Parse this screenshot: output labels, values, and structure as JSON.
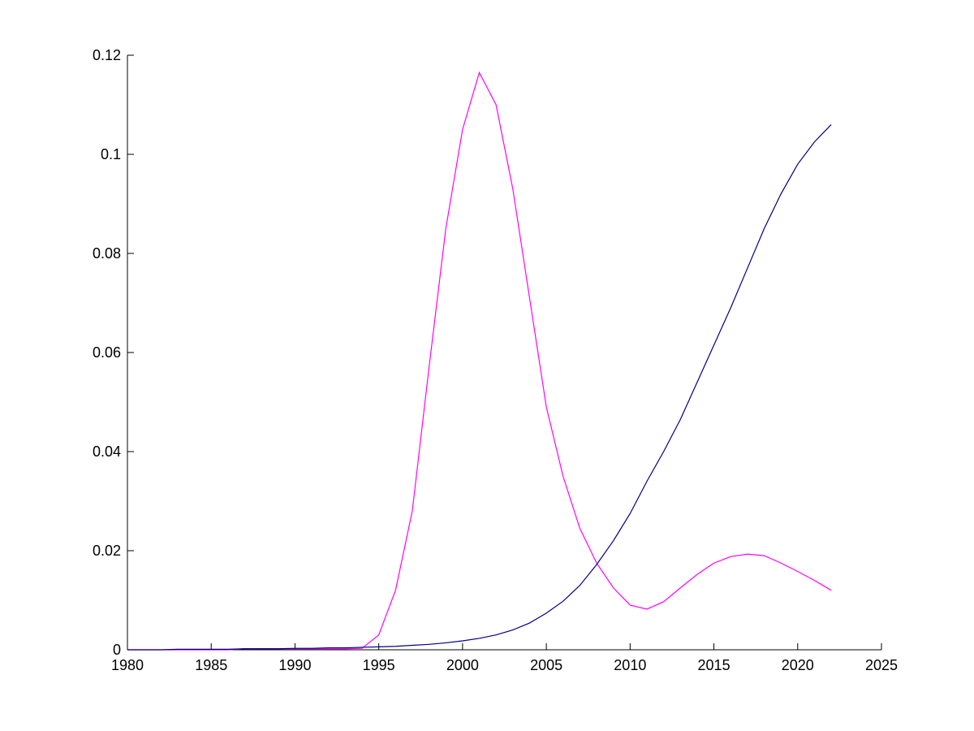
{
  "chart_data": {
    "type": "line",
    "x": [
      1980,
      1981,
      1982,
      1983,
      1984,
      1985,
      1986,
      1987,
      1988,
      1989,
      1990,
      1991,
      1992,
      1993,
      1994,
      1995,
      1996,
      1997,
      1998,
      1999,
      2000,
      2001,
      2002,
      2003,
      2004,
      2005,
      2006,
      2007,
      2008,
      2009,
      2010,
      2011,
      2012,
      2013,
      2014,
      2015,
      2016,
      2017,
      2018,
      2019,
      2020,
      2021,
      2022
    ],
    "series": [
      {
        "color": "#ff00ff",
        "values": [
          0,
          0,
          0,
          0,
          0,
          0,
          0,
          0.0002,
          0.0002,
          0.0002,
          0.0002,
          0.0002,
          0.0002,
          0.0002,
          0.0003,
          0.003,
          0.012,
          0.028,
          0.057,
          0.085,
          0.105,
          0.1165,
          0.11,
          0.093,
          0.071,
          0.049,
          0.035,
          0.0245,
          0.0175,
          0.0125,
          0.009,
          0.0082,
          0.0097,
          0.0125,
          0.0152,
          0.0175,
          0.0188,
          0.0193,
          0.019,
          0.0175,
          0.0158,
          0.014,
          0.012
        ]
      },
      {
        "color": "#000080",
        "values": [
          0,
          0,
          0,
          0.0001,
          0.0001,
          0.0001,
          0.0001,
          0.0002,
          0.0002,
          0.0002,
          0.0003,
          0.0003,
          0.0004,
          0.0004,
          0.0005,
          0.0006,
          0.0007,
          0.0009,
          0.0011,
          0.0014,
          0.0018,
          0.0023,
          0.003,
          0.004,
          0.0054,
          0.0074,
          0.0098,
          0.013,
          0.0172,
          0.022,
          0.0275,
          0.034,
          0.04,
          0.0465,
          0.054,
          0.0615,
          0.069,
          0.077,
          0.085,
          0.092,
          0.098,
          0.1025,
          0.106
        ]
      }
    ],
    "xlim": [
      1980,
      2025
    ],
    "xticks": [
      1980,
      1985,
      1990,
      1995,
      2000,
      2005,
      2010,
      2015,
      2020,
      2025
    ],
    "ylim": [
      0,
      0.12
    ],
    "yticks": [
      0,
      0.02,
      0.04,
      0.06,
      0.08,
      0.1,
      0.12
    ]
  }
}
